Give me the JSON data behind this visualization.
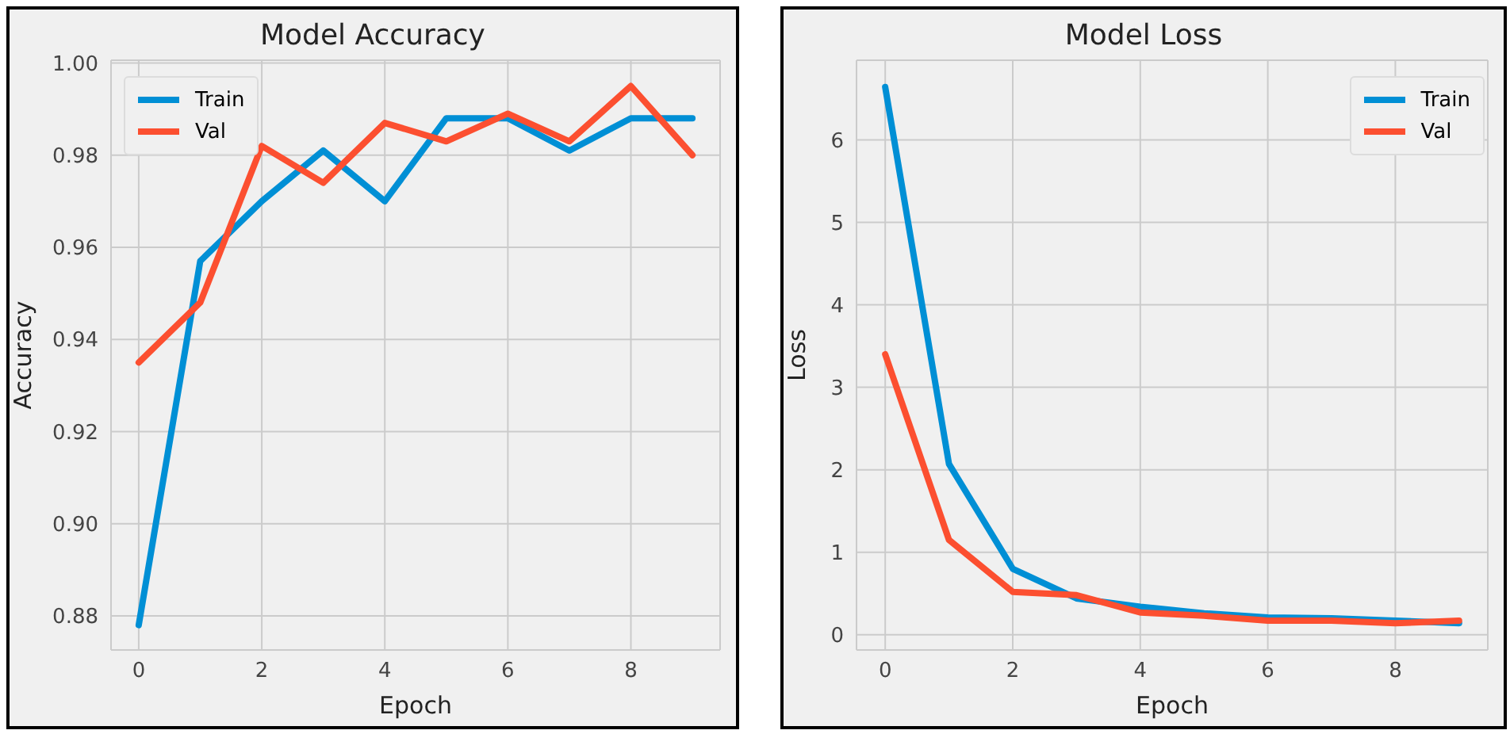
{
  "chart_data": [
    {
      "type": "line",
      "title": "Model Accuracy",
      "xlabel": "Epoch",
      "ylabel": "Accuracy",
      "x": [
        0,
        1,
        2,
        3,
        4,
        5,
        6,
        7,
        8,
        9
      ],
      "series": [
        {
          "name": "Train",
          "color": "#008fd5",
          "values": [
            0.878,
            0.957,
            0.97,
            0.981,
            0.97,
            0.988,
            0.988,
            0.981,
            0.988,
            0.988
          ]
        },
        {
          "name": "Val",
          "color": "#fc4f30",
          "values": [
            0.935,
            0.948,
            0.982,
            0.974,
            0.987,
            0.983,
            0.989,
            0.983,
            0.995,
            0.98
          ]
        }
      ],
      "xlim": [
        -0.45,
        9.45
      ],
      "xticks": [
        0,
        2,
        4,
        6,
        8
      ],
      "ylim": [
        0.8726,
        1.0006
      ],
      "yticks": [
        0.88,
        {
          "value": 0.9,
          "label": "0.90"
        },
        0.92,
        0.94,
        0.96,
        0.98,
        {
          "value": 1,
          "label": "1.00"
        }
      ],
      "grid": true,
      "legend": "top left",
      "marker": "none",
      "line_style": "solid"
    },
    {
      "type": "line",
      "title": "Model Loss",
      "xlabel": "Epoch",
      "ylabel": "Loss",
      "x": [
        0,
        1,
        2,
        3,
        4,
        5,
        6,
        7,
        8,
        9
      ],
      "series": [
        {
          "name": "Train",
          "color": "#008fd5",
          "values": [
            6.64,
            2.07,
            0.8,
            0.44,
            0.34,
            0.26,
            0.21,
            0.2,
            0.17,
            0.14
          ]
        },
        {
          "name": "Val",
          "color": "#fc4f30",
          "values": [
            3.4,
            1.15,
            0.52,
            0.48,
            0.27,
            0.23,
            0.17,
            0.17,
            0.14,
            0.17
          ]
        }
      ],
      "xlim": [
        -0.45,
        9.45
      ],
      "xticks": [
        0,
        2,
        4,
        6,
        8
      ],
      "ylim": [
        -0.185,
        6.965
      ],
      "yticks": [
        0,
        1,
        2,
        3,
        4,
        5,
        6
      ],
      "grid": true,
      "legend": "top right",
      "marker": "none",
      "line_style": "solid"
    }
  ]
}
